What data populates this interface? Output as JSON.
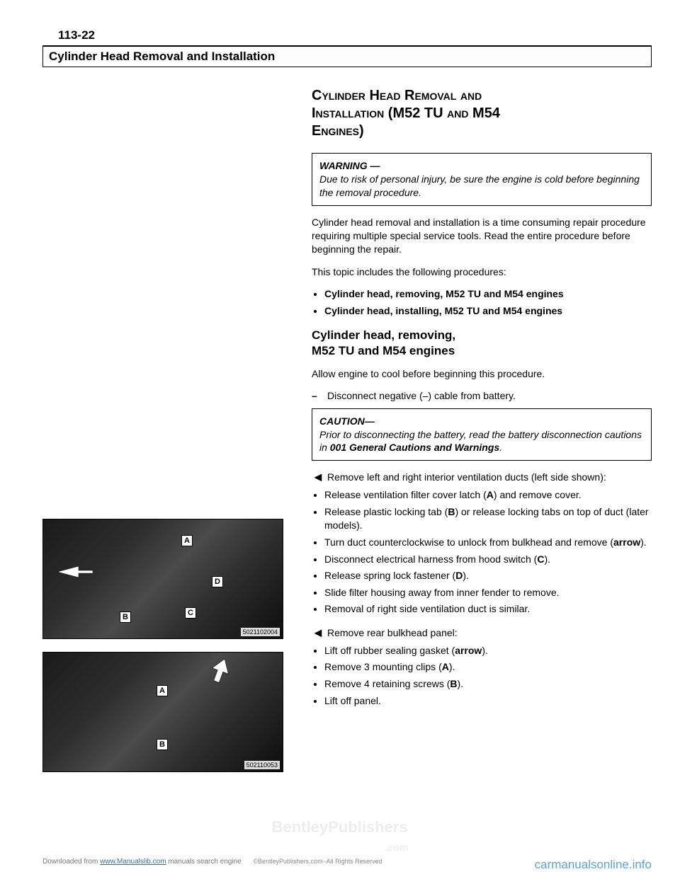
{
  "page_number": "113-22",
  "chapter_title": "Cylinder Head Removal and Installation",
  "section_title_lines": [
    "Cylinder Head Removal and",
    "Installation (M52 TU and M54",
    "Engines)"
  ],
  "warning_label": "WARNING —",
  "warning_body": "Due to risk of personal injury, be sure the engine is cold before beginning the removal procedure.",
  "intro_para": "Cylinder head removal and installation is a time consuming repair procedure requiring multiple special service tools. Read the entire procedure before beginning the repair.",
  "topics_para": "This topic includes the following procedures:",
  "topics_list": [
    "Cylinder head, removing, M52 TU and M54 engines",
    "Cylinder head, installing, M52 TU and M54 engines"
  ],
  "subhead_lines": [
    "Cylinder head, removing,",
    "M52 TU and M54 engines"
  ],
  "cool_para": "Allow engine to cool before beginning this procedure.",
  "disconnect_step": "Disconnect negative (–) cable from battery.",
  "caution_label": "CAUTION—",
  "caution_body_1": "Prior to disconnecting the battery, read the battery disconnection cautions in ",
  "caution_body_bold": "001 General Cautions and Warnings",
  "caution_body_2": ".",
  "vent_lead": "Remove left and right interior ventilation ducts (left side shown):",
  "vent_items": [
    "Release ventilation filter cover latch (<b>A</b>) and remove cover.",
    "Release plastic locking tab (<b>B</b>) or release locking tabs on top of duct (later models).",
    "Turn duct counterclockwise to unlock from bulkhead and remove (<b>arrow</b>).",
    "Disconnect electrical harness from hood switch (<b>C</b>).",
    "Release spring lock fastener (<b>D</b>).",
    "Slide filter housing away from inner fender to remove.",
    "Removal of right side ventilation duct is similar."
  ],
  "bulk_lead": "Remove rear bulkhead panel:",
  "bulk_items": [
    "Lift off rubber sealing gasket (<b>arrow</b>).",
    "Remove 3 mounting clips (<b>A</b>).",
    "Remove 4 retaining screws (<b>B</b>).",
    "Lift off panel."
  ],
  "photo1": {
    "labels": [
      "A",
      "B",
      "C",
      "D"
    ],
    "corner": "5021102004"
  },
  "photo2": {
    "labels": [
      "A",
      "B"
    ],
    "corner": "502110053"
  },
  "footer_left_1": "Downloaded from ",
  "footer_left_link": "www.Manualslib.com",
  "footer_left_2": " manuals search engine",
  "footer_mid": "©BentleyPublishers.com–All Rights Reserved",
  "footer_right": "carmanualsonline.info",
  "watermark": "BentleyPublishers",
  "watermark_sub": ".com"
}
